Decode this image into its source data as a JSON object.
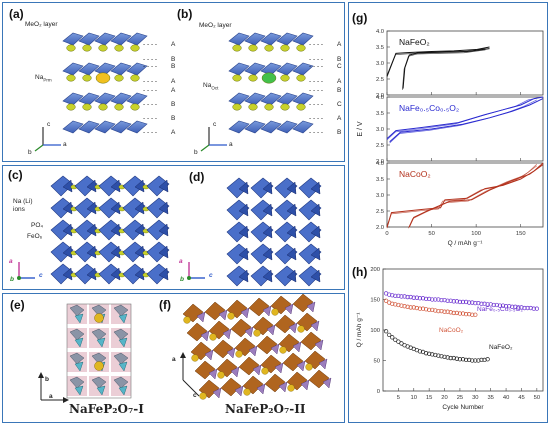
{
  "panels": {
    "a": {
      "label": "(a)",
      "layer": "MeO₂ layer",
      "na": "Na",
      "na_sub": "Prm",
      "stack": [
        "A",
        "B",
        "B",
        "A",
        "A",
        "B",
        "B",
        "A"
      ]
    },
    "b": {
      "label": "(b)",
      "layer": "MeO₂ layer",
      "na": "Na",
      "na_sub": "Oct",
      "stack": [
        "A",
        "B",
        "C",
        "A",
        "B",
        "C",
        "A",
        "B"
      ]
    },
    "c": {
      "label": "(c)",
      "na_ions": "Na (Li)",
      "na_ions2": "ions",
      "po4": "PO₄",
      "feo6": "FeO₆"
    },
    "d": {
      "label": "(d)"
    },
    "e": {
      "label": "(e)",
      "formula": "NaFeP₂O₇-I"
    },
    "f": {
      "label": "(f)",
      "formula": "NaFeP₂O₇-II"
    },
    "g": {
      "label": "(g)"
    },
    "h": {
      "label": "(h)"
    }
  },
  "axes_letters": {
    "a": "a",
    "b": "b",
    "c": "c"
  },
  "chart_data": [
    {
      "type": "line",
      "panel": "g",
      "xlabel": "Q / mAh g⁻¹",
      "ylabel": "E  /  V",
      "xlim": [
        0,
        175
      ],
      "ylim": [
        2.0,
        4.0
      ],
      "xticks": [
        0,
        50,
        100,
        150
      ],
      "yticks": [
        2.0,
        2.5,
        3.0,
        3.5,
        4.0
      ],
      "series": [
        {
          "name": "NaFeO₂",
          "color": "#111111",
          "charge": [
            [
              0,
              2.6
            ],
            [
              10,
              3.3
            ],
            [
              25,
              3.33
            ],
            [
              50,
              3.36
            ],
            [
              75,
              3.38
            ],
            [
              100,
              3.42
            ],
            [
              115,
              3.5
            ]
          ],
          "discharge": [
            [
              115,
              3.45
            ],
            [
              90,
              3.36
            ],
            [
              60,
              3.34
            ],
            [
              35,
              3.32
            ],
            [
              25,
              3.25
            ],
            [
              20,
              2.85
            ],
            [
              18,
              2.2
            ]
          ]
        },
        {
          "name": "NaFe₀.₅Co₀.₅O₂",
          "color": "#2a2ad0",
          "charge": [
            [
              0,
              2.7
            ],
            [
              10,
              2.95
            ],
            [
              40,
              3.05
            ],
            [
              80,
              3.2
            ],
            [
              110,
              3.45
            ],
            [
              130,
              3.6
            ],
            [
              150,
              3.75
            ],
            [
              165,
              3.95
            ],
            [
              175,
              4.0
            ]
          ],
          "discharge": [
            [
              175,
              3.95
            ],
            [
              160,
              3.75
            ],
            [
              140,
              3.55
            ],
            [
              115,
              3.35
            ],
            [
              85,
              3.15
            ],
            [
              50,
              3.0
            ],
            [
              15,
              2.9
            ],
            [
              3,
              2.6
            ]
          ]
        },
        {
          "name": "NaCoO₂",
          "color": "#b3311c",
          "charge": [
            [
              0,
              2.0
            ],
            [
              5,
              2.45
            ],
            [
              40,
              2.55
            ],
            [
              60,
              2.6
            ],
            [
              65,
              2.85
            ],
            [
              90,
              2.9
            ],
            [
              110,
              3.2
            ],
            [
              130,
              3.3
            ],
            [
              150,
              3.5
            ],
            [
              165,
              3.75
            ],
            [
              175,
              4.0
            ]
          ],
          "discharge": [
            [
              175,
              3.95
            ],
            [
              160,
              3.65
            ],
            [
              140,
              3.45
            ],
            [
              115,
              3.15
            ],
            [
              95,
              2.85
            ],
            [
              70,
              2.8
            ],
            [
              45,
              2.5
            ],
            [
              30,
              2.3
            ],
            [
              25,
              2.0
            ]
          ]
        }
      ]
    },
    {
      "type": "scatter",
      "panel": "h",
      "xlabel": "Cycle Number",
      "ylabel": "Q / mAh g⁻¹",
      "xlim": [
        0,
        52
      ],
      "ylim": [
        0,
        200
      ],
      "xticks": [
        5,
        10,
        15,
        20,
        25,
        30,
        35,
        40,
        45,
        50
      ],
      "yticks": [
        0,
        50,
        100,
        150,
        200
      ],
      "series": [
        {
          "name": "NaFe₀.₅Co₀.₅O₂",
          "color": "#6a2fd0",
          "x": [
            1,
            2,
            3,
            4,
            5,
            6,
            7,
            8,
            9,
            10,
            11,
            12,
            13,
            14,
            15,
            16,
            17,
            18,
            19,
            20,
            21,
            22,
            23,
            24,
            25,
            26,
            27,
            28,
            29,
            30,
            31,
            32,
            33,
            34,
            35,
            36,
            37,
            38,
            39,
            40,
            41,
            42,
            43,
            44,
            45,
            46,
            47,
            48,
            49,
            50
          ],
          "y": [
            160,
            158,
            157,
            156,
            156,
            155,
            155,
            154,
            154,
            153,
            153,
            152,
            152,
            151,
            151,
            150,
            150,
            150,
            149,
            149,
            148,
            148,
            147,
            147,
            146,
            146,
            146,
            145,
            145,
            144,
            144,
            143,
            143,
            142,
            142,
            141,
            141,
            140,
            140,
            139,
            139,
            138,
            138,
            137,
            137,
            136,
            136,
            136,
            135,
            135
          ]
        },
        {
          "name": "NaCoO₂",
          "color": "#d2563a",
          "x": [
            1,
            2,
            3,
            4,
            5,
            6,
            7,
            8,
            9,
            10,
            11,
            12,
            13,
            14,
            15,
            16,
            17,
            18,
            19,
            20,
            21,
            22,
            23,
            24,
            25,
            26,
            27,
            28,
            29,
            30
          ],
          "y": [
            148,
            145,
            143,
            142,
            141,
            140,
            139,
            138,
            137,
            137,
            136,
            135,
            135,
            134,
            133,
            133,
            132,
            131,
            131,
            130,
            130,
            129,
            128,
            128,
            127,
            127,
            126,
            126,
            125,
            125
          ]
        },
        {
          "name": "NaFeO₂",
          "color": "#222222",
          "x": [
            1,
            2,
            3,
            4,
            5,
            6,
            7,
            8,
            9,
            10,
            11,
            12,
            13,
            14,
            15,
            16,
            17,
            18,
            19,
            20,
            21,
            22,
            23,
            24,
            25,
            26,
            27,
            28,
            29,
            30,
            31,
            32,
            33,
            34
          ],
          "y": [
            98,
            92,
            88,
            84,
            81,
            78,
            75,
            73,
            71,
            69,
            67,
            65,
            64,
            62,
            61,
            60,
            59,
            58,
            57,
            56,
            55,
            54,
            54,
            53,
            52,
            52,
            51,
            51,
            50,
            50,
            50,
            51,
            51,
            52
          ]
        }
      ]
    }
  ]
}
